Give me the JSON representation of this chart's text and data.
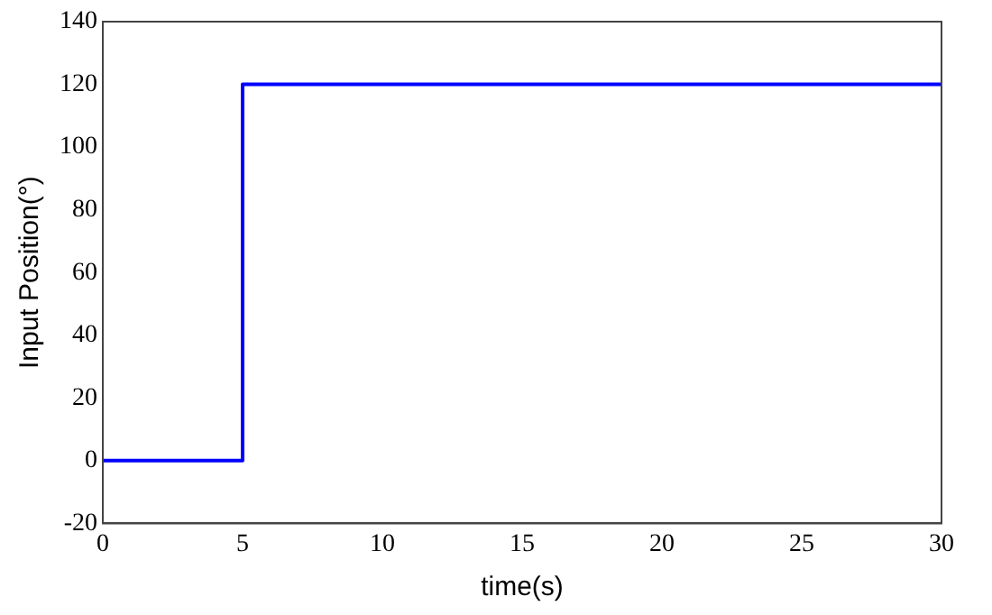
{
  "chart_data": {
    "type": "step",
    "xlabel": "time(s)",
    "ylabel": "Input Position(°)",
    "x": [
      0,
      5,
      30
    ],
    "series": [
      {
        "color": "#0000ff",
        "values": [
          0,
          120,
          120
        ]
      }
    ],
    "xlim": [
      0,
      30
    ],
    "xticks": [
      0,
      5,
      10,
      15,
      20,
      25,
      30
    ],
    "ylim": [
      -20,
      140
    ],
    "yticks": [
      -20,
      0,
      20,
      40,
      60,
      80,
      100,
      120,
      140
    ],
    "grid": false,
    "legend": false,
    "marker": "none",
    "line_style": "solid"
  }
}
